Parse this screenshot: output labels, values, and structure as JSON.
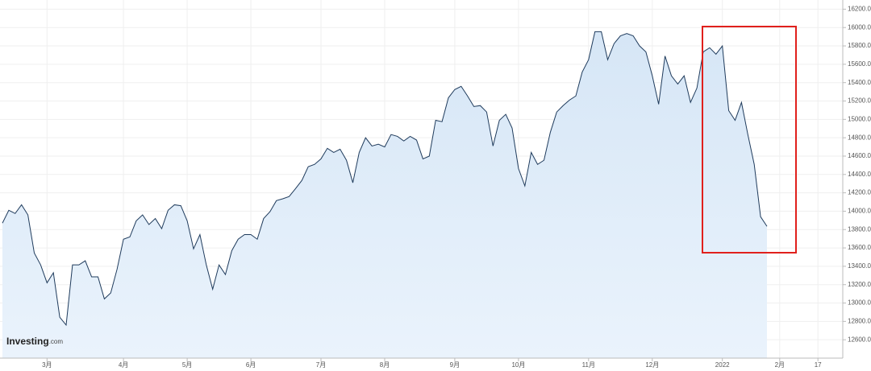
{
  "chart_data": {
    "type": "area",
    "logo": {
      "name": "Investing",
      "suffix": ".com"
    },
    "categories": [
      null,
      null,
      null,
      null,
      null,
      null,
      null,
      "3月",
      null,
      null,
      null,
      null,
      null,
      null,
      null,
      null,
      null,
      null,
      null,
      "4月",
      null,
      null,
      null,
      null,
      null,
      null,
      null,
      null,
      null,
      "5月",
      null,
      null,
      null,
      null,
      null,
      null,
      null,
      null,
      null,
      "6月",
      null,
      null,
      null,
      null,
      null,
      null,
      null,
      null,
      null,
      null,
      "7月",
      null,
      null,
      null,
      null,
      null,
      null,
      null,
      null,
      null,
      "8月",
      null,
      null,
      null,
      null,
      null,
      null,
      null,
      null,
      null,
      null,
      "9月",
      null,
      null,
      null,
      null,
      null,
      null,
      null,
      null,
      null,
      "10月",
      null,
      null,
      null,
      null,
      null,
      null,
      null,
      null,
      null,
      null,
      "11月",
      null,
      null,
      null,
      null,
      null,
      null,
      null,
      null,
      null,
      "12月",
      null,
      null,
      null,
      null,
      null,
      null,
      null,
      null,
      null,
      null,
      "2022",
      null,
      null,
      null,
      null,
      null,
      null,
      null,
      null,
      "2月",
      null,
      null,
      null,
      null,
      null,
      "17"
    ],
    "series": [
      {
        "color": "#1f3b5c",
        "fill": "#dce9f7",
        "values": [
          13870,
          14010,
          13975,
          14070,
          13960,
          13545,
          13415,
          13220,
          13330,
          12845,
          12760,
          13415,
          13415,
          13460,
          13285,
          13285,
          13045,
          13110,
          13370,
          13695,
          13720,
          13895,
          13960,
          13855,
          13920,
          13810,
          14010,
          14070,
          14060,
          13895,
          13590,
          13745,
          13415,
          13150,
          13415,
          13310,
          13570,
          13695,
          13745,
          13745,
          13695,
          13920,
          13995,
          14115,
          14135,
          14160,
          14245,
          14335,
          14485,
          14510,
          14570,
          14685,
          14640,
          14675,
          14555,
          14310,
          14640,
          14800,
          14710,
          14730,
          14700,
          14835,
          14815,
          14765,
          14815,
          14775,
          14570,
          14600,
          14990,
          14975,
          15235,
          15325,
          15360,
          15255,
          15140,
          15150,
          15080,
          14710,
          14990,
          15055,
          14905,
          14465,
          14275,
          14640,
          14510,
          14555,
          14860,
          15080,
          15150,
          15210,
          15255,
          15515,
          15650,
          15955,
          15955,
          15650,
          15825,
          15910,
          15935,
          15910,
          15800,
          15735,
          15475,
          15165,
          15690,
          15475,
          15385,
          15475,
          15185,
          15340,
          15735,
          15780,
          15710,
          15800,
          15095,
          14990,
          15185,
          14835,
          14510,
          13940,
          13835,
          null,
          null,
          null,
          null,
          null,
          null,
          null,
          null
        ]
      }
    ],
    "ylim": [
      12400,
      16300
    ],
    "yticks": [
      {
        "value": 12600,
        "label": "12600.0"
      },
      {
        "value": 12800,
        "label": "12800.0"
      },
      {
        "value": 13000,
        "label": "13000.0"
      },
      {
        "value": 13200,
        "label": "13200.0"
      },
      {
        "value": 13400,
        "label": "13400.0"
      },
      {
        "value": 13600,
        "label": "13600.0"
      },
      {
        "value": 13800,
        "label": "13800.0"
      },
      {
        "value": 14000,
        "label": "14000.0"
      },
      {
        "value": 14200,
        "label": "14200.0"
      },
      {
        "value": 14400,
        "label": "14400.0"
      },
      {
        "value": 14600,
        "label": "14600.0"
      },
      {
        "value": 14800,
        "label": "14800.0"
      },
      {
        "value": 15000,
        "label": "15000.0"
      },
      {
        "value": 15200,
        "label": "15200.0"
      },
      {
        "value": 15400,
        "label": "15400.0"
      },
      {
        "value": 15600,
        "label": "15600.0"
      },
      {
        "value": 15800,
        "label": "15800.0"
      },
      {
        "value": 16000,
        "label": "16000.0"
      },
      {
        "value": 16200,
        "label": "16200.0"
      }
    ],
    "grid": true
  }
}
